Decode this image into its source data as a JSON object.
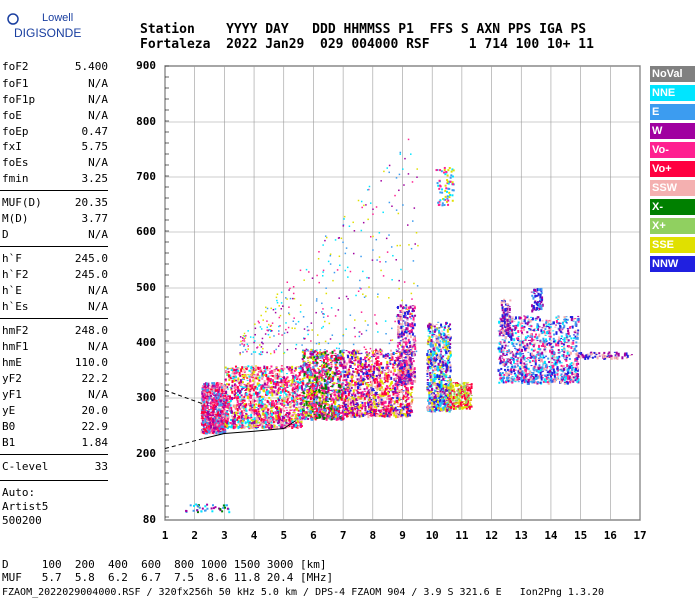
{
  "logo": {
    "line1": "Lowell",
    "line2": "DIGISONDE"
  },
  "header": {
    "line1": "Station    YYYY DAY   DDD HHMMSS P1  FFS S AXN PPS IGA PS",
    "line2": "Fortaleza  2022 Jan29  029 004000 RSF     1 714 100 10+ 11"
  },
  "params": [
    {
      "label": "foF2",
      "value": "5.400"
    },
    {
      "label": "foF1",
      "value": "N/A"
    },
    {
      "label": "foF1p",
      "value": "N/A"
    },
    {
      "label": "foE",
      "value": "N/A"
    },
    {
      "label": "foEp",
      "value": "0.47"
    },
    {
      "label": "fxI",
      "value": "5.75"
    },
    {
      "label": "foEs",
      "value": "N/A"
    },
    {
      "label": "fmin",
      "value": "3.25"
    },
    {
      "label": "MUF(D)",
      "value": "20.35"
    },
    {
      "label": "M(D)",
      "value": "3.77"
    },
    {
      "label": "D",
      "value": "N/A"
    },
    {
      "label": "h`F",
      "value": "245.0"
    },
    {
      "label": "h`F2",
      "value": "245.0"
    },
    {
      "label": "h`E",
      "value": "N/A"
    },
    {
      "label": "h`Es",
      "value": "N/A"
    },
    {
      "label": "hmF2",
      "value": "248.0"
    },
    {
      "label": "hmF1",
      "value": "N/A"
    },
    {
      "label": "hmE",
      "value": "110.0"
    },
    {
      "label": "yF2",
      "value": "22.2"
    },
    {
      "label": "yF1",
      "value": "N/A"
    },
    {
      "label": "yE",
      "value": "20.0"
    },
    {
      "label": "B0",
      "value": "22.9"
    },
    {
      "label": "B1",
      "value": "1.84"
    },
    {
      "label": "C-level",
      "value": "33"
    }
  ],
  "auto": {
    "l1": "Auto:",
    "l2": "Artist5",
    "l3": "500200"
  },
  "axes": {
    "y_ticks": [
      "900",
      "800",
      "700",
      "600",
      "500",
      "400",
      "300",
      "200",
      "80"
    ],
    "x_ticks": [
      "1",
      "2",
      "3",
      "4",
      "5",
      "6",
      "7",
      "8",
      "9",
      "10",
      "11",
      "12",
      "13",
      "14",
      "15",
      "16",
      "17"
    ]
  },
  "legend": [
    {
      "label": "NoVal",
      "color": "#808080"
    },
    {
      "label": "NNE",
      "color": "#00e5ff"
    },
    {
      "label": "E",
      "color": "#3c9cf0"
    },
    {
      "label": "W",
      "color": "#a000a0"
    },
    {
      "label": "Vo-",
      "color": "#ff2090"
    },
    {
      "label": "Vo+",
      "color": "#ff0040"
    },
    {
      "label": "SSW",
      "color": "#f4b0b0"
    },
    {
      "label": "X-",
      "color": "#008000"
    },
    {
      "label": "X+",
      "color": "#90d060"
    },
    {
      "label": "SSE",
      "color": "#e0e000"
    },
    {
      "label": "NNW",
      "color": "#2020e0"
    }
  ],
  "muf_table": {
    "line1": "D     100  200  400  600  800 1000 1500 3000 [km]",
    "line2": "MUF   5.7  5.8  6.2  6.7  7.5  8.6 11.8 20.4 [MHz]"
  },
  "footer": "FZAOM_2022029004000.RSF / 320fx256h 50 kHz 5.0 km / DPS-4 FZAOM 904 / 3.9 S 321.6 E   Ion2Png 1.3.20"
}
